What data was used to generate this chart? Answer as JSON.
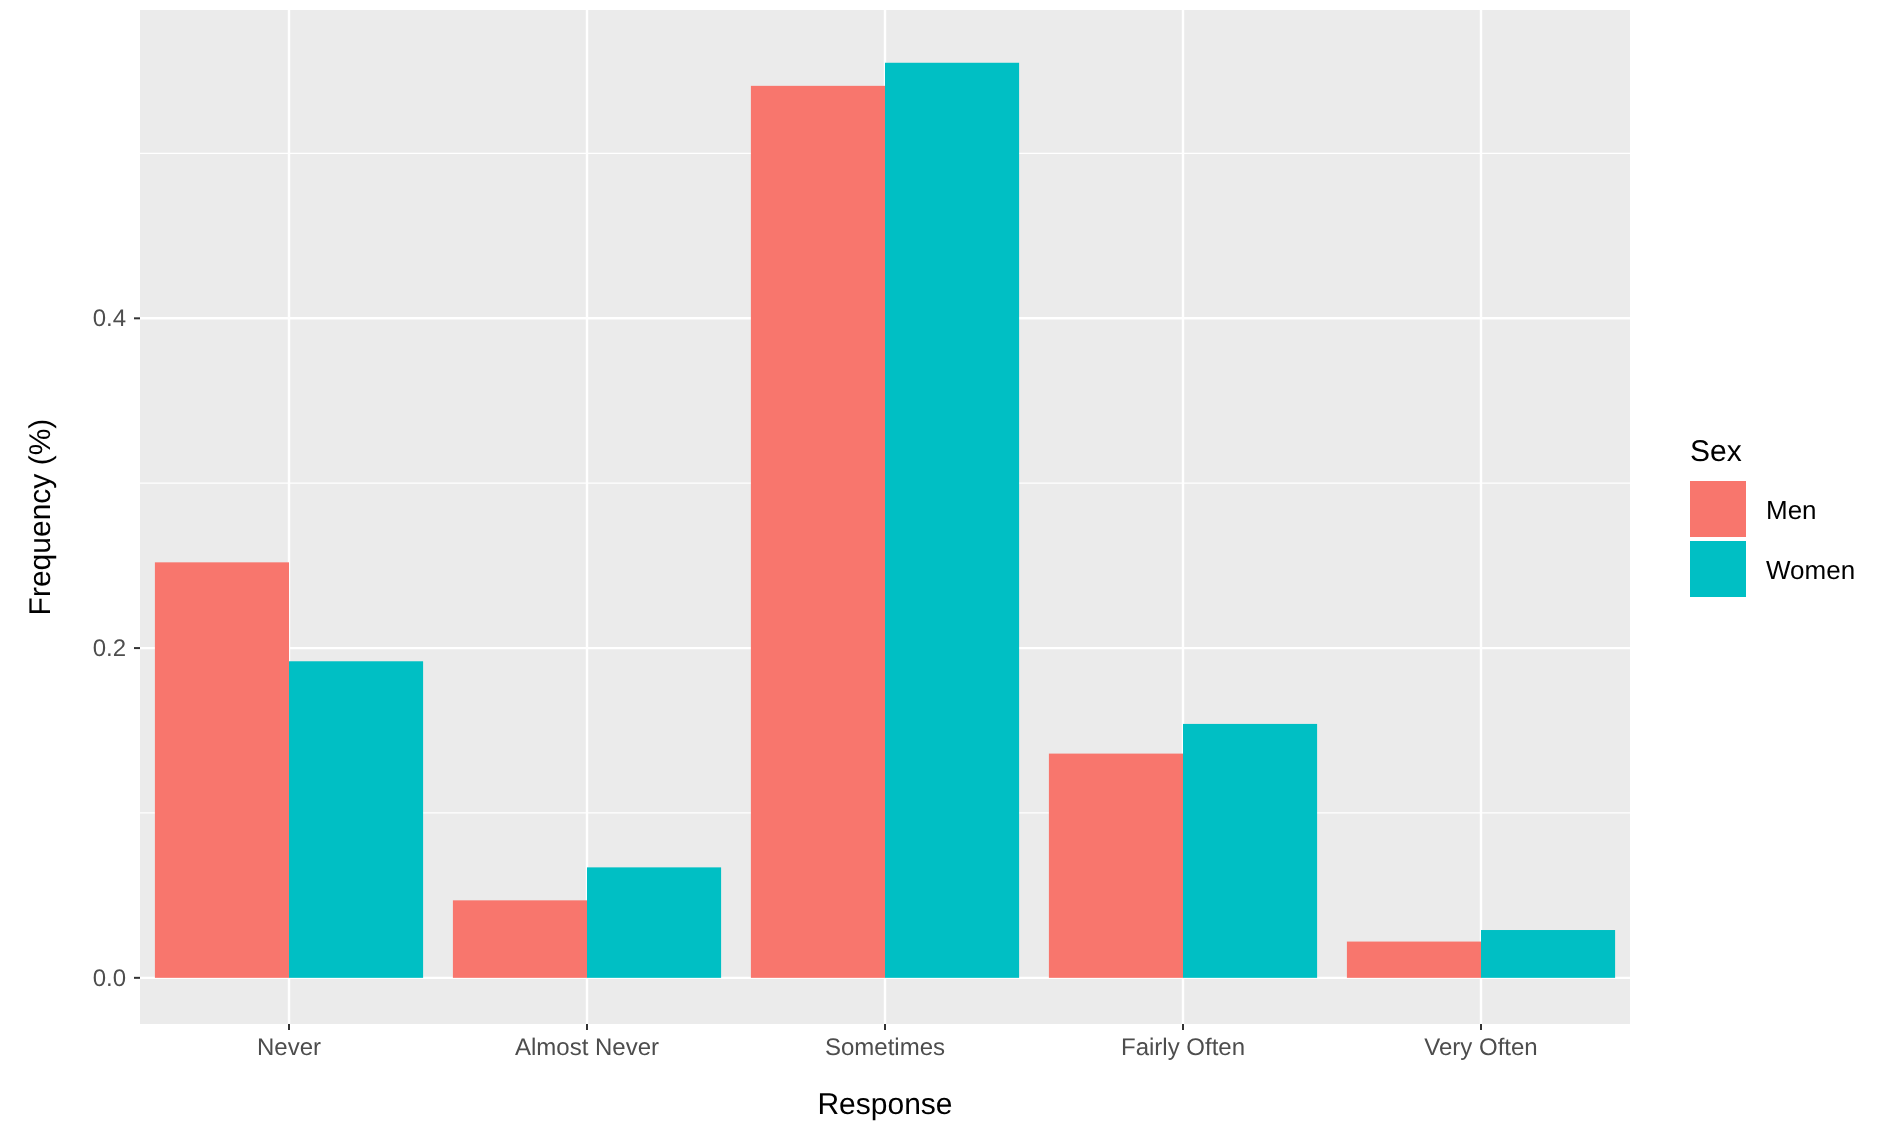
{
  "chart_data": {
    "type": "bar",
    "xlabel": "Response",
    "ylabel": "Frequency (%)",
    "legend_title": "Sex",
    "categories": [
      "Never",
      "Almost Never",
      "Sometimes",
      "Fairly Often",
      "Very Often"
    ],
    "series": [
      {
        "name": "Men",
        "color": "#f8766d",
        "values": [
          0.252,
          0.047,
          0.541,
          0.136,
          0.022
        ]
      },
      {
        "name": "Women",
        "color": "#00bfc4",
        "values": [
          0.192,
          0.067,
          0.555,
          0.154,
          0.029
        ]
      }
    ],
    "ylim": [
      -0.028,
      0.587
    ],
    "yticks": [
      {
        "value": 0,
        "label": "0.0"
      },
      {
        "value": 0.1,
        "label": null
      },
      {
        "value": 0.2,
        "label": "0.2"
      },
      {
        "value": 0.3,
        "label": null
      },
      {
        "value": 0.4,
        "label": "0.4"
      },
      {
        "value": 0.5,
        "label": null
      }
    ],
    "grid": true,
    "legend": "right"
  }
}
